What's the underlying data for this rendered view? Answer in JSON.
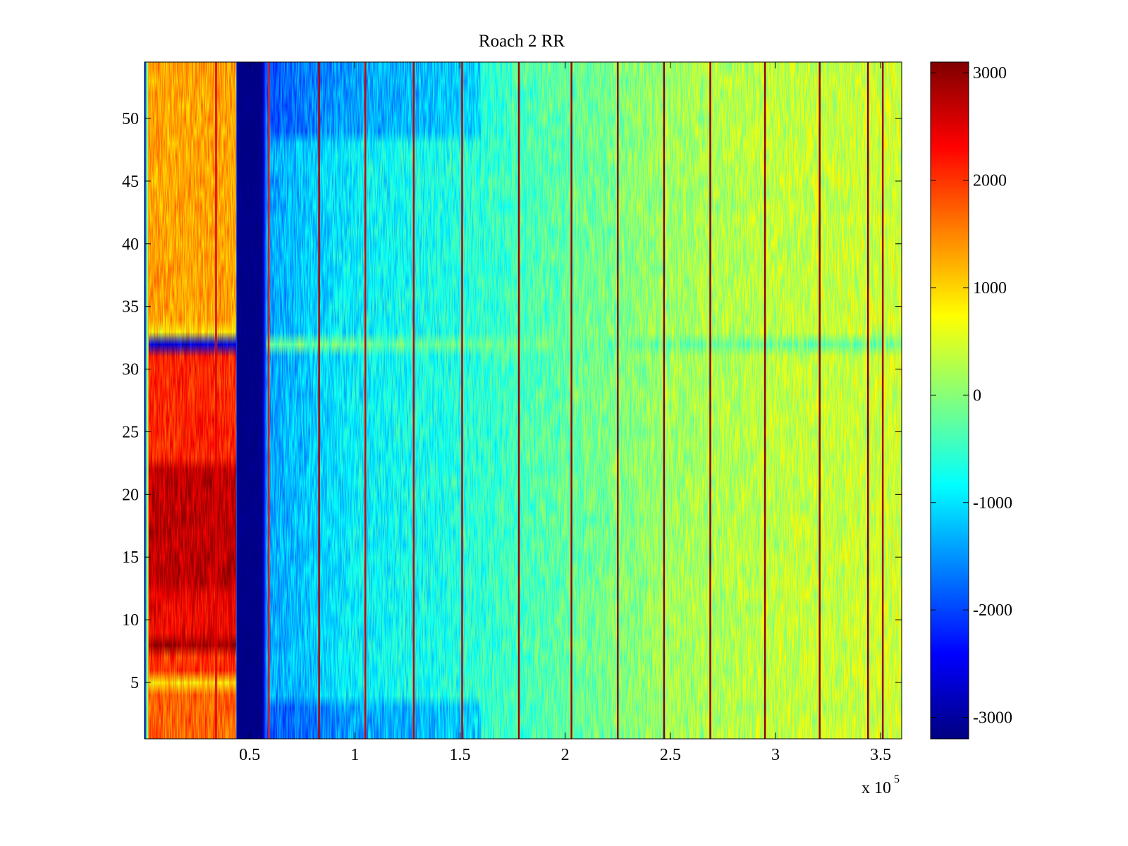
{
  "chart_data": {
    "type": "heatmap",
    "title": "Roach 2 RR",
    "xlabel": "",
    "ylabel": "",
    "x_multiplier_label": {
      "base": "x 10",
      "exponent": "5"
    },
    "xlim": [
      0,
      3.6
    ],
    "ylim": [
      0.5,
      54.5
    ],
    "x_ticks": [
      {
        "value": 0.5,
        "label": "0.5"
      },
      {
        "value": 1.0,
        "label": "1"
      },
      {
        "value": 1.5,
        "label": "1.5"
      },
      {
        "value": 2.0,
        "label": "2"
      },
      {
        "value": 2.5,
        "label": "2.5"
      },
      {
        "value": 3.0,
        "label": "3"
      },
      {
        "value": 3.5,
        "label": "3.5"
      }
    ],
    "y_ticks": [
      {
        "value": 5,
        "label": "5"
      },
      {
        "value": 10,
        "label": "10"
      },
      {
        "value": 15,
        "label": "15"
      },
      {
        "value": 20,
        "label": "20"
      },
      {
        "value": 25,
        "label": "25"
      },
      {
        "value": 30,
        "label": "30"
      },
      {
        "value": 35,
        "label": "35"
      },
      {
        "value": 40,
        "label": "40"
      },
      {
        "value": 45,
        "label": "45"
      },
      {
        "value": 50,
        "label": "50"
      }
    ],
    "rows": 54,
    "colormap": "jet",
    "color_range": [
      -3200,
      3100
    ],
    "colorbar": {
      "ticks": [
        {
          "value": 3000,
          "label": "3000"
        },
        {
          "value": 2000,
          "label": "2000"
        },
        {
          "value": 1000,
          "label": "1000"
        },
        {
          "value": 0,
          "label": "0"
        },
        {
          "value": -1000,
          "label": "-1000"
        },
        {
          "value": -2000,
          "label": "-2000"
        },
        {
          "value": -3000,
          "label": "-3000"
        }
      ]
    },
    "column_profile": [
      {
        "x": 0.0,
        "value": -3100
      },
      {
        "x": 0.02,
        "value": 1800
      },
      {
        "x": 0.43,
        "value": 1800
      },
      {
        "x": 0.44,
        "value": -3150
      },
      {
        "x": 0.56,
        "value": -3150
      },
      {
        "x": 0.58,
        "value": -1400
      },
      {
        "x": 1.0,
        "value": -900
      },
      {
        "x": 1.5,
        "value": -650
      },
      {
        "x": 2.0,
        "value": -250
      },
      {
        "x": 2.5,
        "value": 150
      },
      {
        "x": 3.0,
        "value": 350
      },
      {
        "x": 3.6,
        "value": 450
      }
    ],
    "row_offsets_left_block": [
      {
        "rows": [
          1,
          4
        ],
        "value": 1700
      },
      {
        "rows": [
          5,
          5
        ],
        "value": 900
      },
      {
        "rows": [
          6,
          7
        ],
        "value": 2000
      },
      {
        "rows": [
          8,
          8
        ],
        "value": 2900
      },
      {
        "rows": [
          9,
          12
        ],
        "value": 2400
      },
      {
        "rows": [
          13,
          22
        ],
        "value": 2700
      },
      {
        "rows": [
          23,
          31
        ],
        "value": 2100
      },
      {
        "rows": [
          32,
          32
        ],
        "value": -2600
      },
      {
        "rows": [
          33,
          33
        ],
        "value": 900
      },
      {
        "rows": [
          34,
          54
        ],
        "value": 1300
      }
    ],
    "special_rows": [
      {
        "row": 32,
        "right_value": -200
      }
    ],
    "vertical_lines": [
      {
        "x": 0.34,
        "value": 2500
      },
      {
        "x": 0.59,
        "value": 2200
      },
      {
        "x": 0.83,
        "value": 2800
      },
      {
        "x": 1.05,
        "value": 2600
      },
      {
        "x": 1.28,
        "value": 2700
      },
      {
        "x": 1.51,
        "value": 2700
      },
      {
        "x": 1.78,
        "value": 2900
      },
      {
        "x": 2.03,
        "value": 2900
      },
      {
        "x": 2.25,
        "value": 3000
      },
      {
        "x": 2.47,
        "value": 3000
      },
      {
        "x": 2.69,
        "value": 3000
      },
      {
        "x": 2.95,
        "value": 3000
      },
      {
        "x": 3.21,
        "value": 3000
      },
      {
        "x": 3.44,
        "value": 3000
      },
      {
        "x": 3.51,
        "value": 2900
      }
    ]
  }
}
